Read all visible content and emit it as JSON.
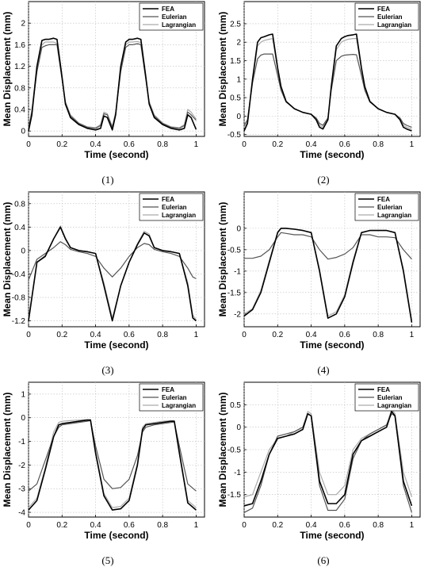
{
  "colors": {
    "FEA": "#000000",
    "Eulerian": "#555555",
    "Lagrangian": "#aaaaaa",
    "grid": "#bdbdbd"
  },
  "chart_data": [
    {
      "type": "line",
      "caption": "(1)",
      "xlabel": "Time (second)",
      "ylabel": "Mean Displacement (mm)",
      "xlim": [
        0,
        1.05
      ],
      "ylim": [
        -0.1,
        2.4
      ],
      "grid": true,
      "legend": "top-right",
      "xticks": [
        "0",
        "0.2",
        "0.4",
        "0.6",
        "0.8",
        "1"
      ],
      "yticks": [
        "0",
        "0.4",
        "0.8",
        "1.2",
        "1.6",
        "2"
      ],
      "x": [
        0,
        0.02,
        0.05,
        0.08,
        0.1,
        0.12,
        0.15,
        0.17,
        0.2,
        0.22,
        0.25,
        0.3,
        0.35,
        0.4,
        0.43,
        0.45,
        0.47,
        0.5,
        0.52,
        0.55,
        0.58,
        0.6,
        0.62,
        0.65,
        0.67,
        0.7,
        0.72,
        0.75,
        0.8,
        0.85,
        0.9,
        0.93,
        0.95,
        0.97,
        1
      ],
      "series": [
        {
          "name": "FEA",
          "values": [
            0,
            0.3,
            1.2,
            1.68,
            1.7,
            1.7,
            1.72,
            1.7,
            1,
            0.5,
            0.25,
            0.12,
            0.05,
            0.02,
            0.05,
            0.28,
            0.25,
            0.02,
            0.3,
            1.2,
            1.65,
            1.7,
            1.7,
            1.72,
            1.7,
            1,
            0.5,
            0.25,
            0.12,
            0.05,
            0.02,
            0.05,
            0.3,
            0.25,
            0.03
          ]
        },
        {
          "name": "Eulerian",
          "values": [
            0.05,
            0.35,
            1.1,
            1.55,
            1.58,
            1.6,
            1.6,
            1.6,
            0.95,
            0.52,
            0.28,
            0.14,
            0.07,
            0.05,
            0.1,
            0.32,
            0.3,
            0.07,
            0.32,
            1.1,
            1.55,
            1.6,
            1.6,
            1.62,
            1.6,
            0.95,
            0.52,
            0.28,
            0.14,
            0.07,
            0.05,
            0.1,
            0.35,
            0.3,
            0.2
          ]
        },
        {
          "name": "Lagrangian",
          "values": [
            0.05,
            0.4,
            1.2,
            1.6,
            1.65,
            1.65,
            1.65,
            1.62,
            0.98,
            0.55,
            0.3,
            0.15,
            0.08,
            0.06,
            0.12,
            0.35,
            0.32,
            0.08,
            0.35,
            1.15,
            1.6,
            1.65,
            1.65,
            1.66,
            1.64,
            0.98,
            0.55,
            0.3,
            0.15,
            0.08,
            0.06,
            0.12,
            0.4,
            0.35,
            0.22
          ]
        }
      ]
    },
    {
      "type": "line",
      "caption": "(2)",
      "xlabel": "Time (second)",
      "ylabel": "Mean Displacement (mm)",
      "xlim": [
        0,
        1.05
      ],
      "ylim": [
        -0.55,
        3.1
      ],
      "grid": true,
      "legend": "top-right",
      "xticks": [
        "0",
        "0.2",
        "0.4",
        "0.6",
        "0.8",
        "1"
      ],
      "yticks": [
        "-0.5",
        "0",
        "0.5",
        "1",
        "1.5",
        "2",
        "2.5"
      ],
      "x": [
        0,
        0.02,
        0.05,
        0.08,
        0.1,
        0.12,
        0.15,
        0.17,
        0.2,
        0.22,
        0.25,
        0.3,
        0.35,
        0.4,
        0.43,
        0.45,
        0.47,
        0.5,
        0.52,
        0.55,
        0.58,
        0.6,
        0.62,
        0.65,
        0.67,
        0.7,
        0.72,
        0.75,
        0.8,
        0.85,
        0.9,
        0.93,
        0.95,
        0.97,
        1
      ],
      "series": [
        {
          "name": "FEA",
          "values": [
            -0.4,
            -0.2,
            1,
            2,
            2.12,
            2.15,
            2.2,
            2.22,
            1.3,
            0.8,
            0.4,
            0.2,
            0.1,
            0.05,
            -0.1,
            -0.3,
            -0.35,
            -0.1,
            0.8,
            1.9,
            2.1,
            2.15,
            2.18,
            2.2,
            2.22,
            1.3,
            0.8,
            0.4,
            0.2,
            0.1,
            0.05,
            -0.1,
            -0.3,
            -0.35,
            -0.4
          ]
        },
        {
          "name": "Eulerian",
          "values": [
            -0.25,
            -0.1,
            0.9,
            1.55,
            1.65,
            1.68,
            1.68,
            1.68,
            1.1,
            0.7,
            0.38,
            0.2,
            0.1,
            0.05,
            -0.05,
            -0.2,
            -0.25,
            -0.05,
            0.7,
            1.5,
            1.62,
            1.65,
            1.66,
            1.67,
            1.66,
            1.1,
            0.7,
            0.38,
            0.2,
            0.1,
            0.05,
            -0.05,
            -0.2,
            -0.25,
            -0.3
          ]
        },
        {
          "name": "Lagrangian",
          "values": [
            -0.3,
            -0.15,
            0.95,
            1.9,
            2,
            2.05,
            2.08,
            2.1,
            1.25,
            0.78,
            0.4,
            0.2,
            0.1,
            0.05,
            -0.08,
            -0.25,
            -0.3,
            -0.08,
            0.75,
            1.8,
            2,
            2.05,
            2.08,
            2.1,
            2.1,
            1.25,
            0.78,
            0.4,
            0.2,
            0.1,
            0.05,
            -0.08,
            -0.25,
            -0.3,
            -0.35
          ]
        }
      ]
    },
    {
      "type": "line",
      "caption": "(3)",
      "xlabel": "Time (second)",
      "ylabel": "Mean Displacement (mm)",
      "xlim": [
        0,
        1.05
      ],
      "ylim": [
        -1.3,
        1.0
      ],
      "grid": true,
      "legend": "top-right",
      "xticks": [
        "0",
        "0.2",
        "0.4",
        "0.6",
        "0.8",
        "1"
      ],
      "yticks": [
        "-1.2",
        "-0.8",
        "-0.4",
        "0",
        "0.4",
        "0.8"
      ],
      "x": [
        0,
        0.05,
        0.1,
        0.15,
        0.19,
        0.22,
        0.25,
        0.3,
        0.35,
        0.4,
        0.45,
        0.5,
        0.55,
        0.6,
        0.65,
        0.69,
        0.72,
        0.75,
        0.8,
        0.85,
        0.9,
        0.95,
        0.98,
        1
      ],
      "series": [
        {
          "name": "FEA",
          "values": [
            -1.2,
            -0.2,
            -0.1,
            0.2,
            0.4,
            0.2,
            0.05,
            0,
            -0.02,
            -0.05,
            -0.6,
            -1.2,
            -0.6,
            -0.2,
            0.1,
            0.3,
            0.25,
            0.05,
            0,
            -0.02,
            -0.05,
            -0.6,
            -1.15,
            -1.2
          ]
        },
        {
          "name": "Eulerian",
          "values": [
            -0.5,
            -0.15,
            -0.05,
            0.05,
            0.15,
            0.1,
            0.02,
            -0.02,
            -0.05,
            -0.1,
            -0.3,
            -0.45,
            -0.3,
            -0.1,
            0.05,
            0.12,
            0.1,
            0.02,
            -0.02,
            -0.05,
            -0.1,
            -0.3,
            -0.45,
            -0.48
          ]
        },
        {
          "name": "Lagrangian",
          "values": [
            -1.15,
            -0.2,
            -0.08,
            0.2,
            0.42,
            0.22,
            0.05,
            0,
            -0.02,
            -0.05,
            -0.55,
            -1.15,
            -0.6,
            -0.2,
            0.12,
            0.33,
            0.28,
            0.05,
            0,
            -0.02,
            -0.05,
            -0.55,
            -1.1,
            -1.18
          ]
        }
      ]
    },
    {
      "type": "line",
      "caption": "(4)",
      "xlabel": "Time (second)",
      "ylabel": "Mean Displacement (mm)",
      "xlim": [
        0,
        1.05
      ],
      "ylim": [
        -2.3,
        0.85
      ],
      "grid": true,
      "legend": "top-right",
      "xticks": [
        "0",
        "0.2",
        "0.4",
        "0.6",
        "0.8",
        "1"
      ],
      "yticks": [
        "-2",
        "-1.5",
        "-1",
        "-0.5",
        "0"
      ],
      "x": [
        0,
        0.05,
        0.1,
        0.15,
        0.2,
        0.22,
        0.25,
        0.3,
        0.35,
        0.4,
        0.45,
        0.5,
        0.55,
        0.6,
        0.65,
        0.7,
        0.75,
        0.8,
        0.85,
        0.9,
        0.95,
        1
      ],
      "series": [
        {
          "name": "FEA",
          "values": [
            -2.05,
            -1.9,
            -1.5,
            -0.8,
            -0.1,
            0,
            0,
            -0.02,
            -0.05,
            -0.1,
            -1,
            -2.1,
            -2,
            -1.6,
            -0.8,
            -0.1,
            -0.05,
            -0.05,
            -0.05,
            -0.1,
            -1,
            -2.2
          ]
        },
        {
          "name": "Eulerian",
          "values": [
            -0.7,
            -0.7,
            -0.65,
            -0.5,
            -0.2,
            -0.1,
            -0.12,
            -0.15,
            -0.15,
            -0.2,
            -0.5,
            -0.72,
            -0.68,
            -0.6,
            -0.45,
            -0.15,
            -0.15,
            -0.2,
            -0.2,
            -0.22,
            -0.5,
            -0.72
          ]
        },
        {
          "name": "Lagrangian",
          "values": [
            -2,
            -1.88,
            -1.45,
            -0.75,
            -0.08,
            0,
            0,
            -0.02,
            -0.05,
            -0.1,
            -0.95,
            -2.05,
            -1.95,
            -1.55,
            -0.75,
            -0.1,
            -0.05,
            -0.05,
            -0.05,
            -0.1,
            -0.95,
            -2.15
          ]
        }
      ]
    },
    {
      "type": "line",
      "caption": "(5)",
      "xlabel": "Time (second)",
      "ylabel": "Mean Displacement (mm)",
      "xlim": [
        0,
        1.05
      ],
      "ylim": [
        -4.2,
        1.5
      ],
      "grid": true,
      "legend": "top-right",
      "xticks": [
        "0",
        "0.2",
        "0.4",
        "0.6",
        "0.8",
        "1"
      ],
      "yticks": [
        "-4",
        "-3",
        "-2",
        "-1",
        "0",
        "1"
      ],
      "x": [
        0,
        0.05,
        0.1,
        0.15,
        0.18,
        0.2,
        0.25,
        0.3,
        0.35,
        0.37,
        0.4,
        0.45,
        0.5,
        0.55,
        0.6,
        0.65,
        0.68,
        0.7,
        0.75,
        0.8,
        0.85,
        0.87,
        0.9,
        0.95,
        1
      ],
      "series": [
        {
          "name": "FEA",
          "values": [
            -3.9,
            -3.5,
            -2.2,
            -0.8,
            -0.3,
            -0.25,
            -0.2,
            -0.15,
            -0.1,
            -0.1,
            -1.5,
            -3.3,
            -3.9,
            -3.85,
            -3.5,
            -2,
            -0.5,
            -0.3,
            -0.25,
            -0.2,
            -0.15,
            -0.15,
            -1.5,
            -3.6,
            -3.9
          ]
        },
        {
          "name": "Eulerian",
          "values": [
            -3.1,
            -2.8,
            -1.8,
            -0.8,
            -0.4,
            -0.3,
            -0.25,
            -0.2,
            -0.15,
            -0.12,
            -1.2,
            -2.6,
            -3,
            -2.95,
            -2.6,
            -1.6,
            -0.6,
            -0.4,
            -0.3,
            -0.25,
            -0.2,
            -0.18,
            -1.2,
            -2.8,
            -3.1
          ]
        },
        {
          "name": "Lagrangian",
          "values": [
            -3.8,
            -3.4,
            -2.1,
            -0.6,
            -0.2,
            -0.15,
            -0.12,
            -0.1,
            -0.08,
            -0.08,
            -1.4,
            -3.2,
            -3.8,
            -3.75,
            -3.4,
            -1.9,
            -0.4,
            -0.25,
            -0.2,
            -0.15,
            -0.12,
            -0.12,
            -1.4,
            -3.5,
            -3.8
          ]
        }
      ]
    },
    {
      "type": "line",
      "caption": "(6)",
      "xlabel": "Time (second)",
      "ylabel": "Mean Displacement (mm)",
      "xlim": [
        0,
        1.05
      ],
      "ylim": [
        -2.0,
        1.0
      ],
      "grid": true,
      "legend": "top-right",
      "xticks": [
        "0",
        "0.2",
        "0.4",
        "0.6",
        "0.8",
        "1"
      ],
      "yticks": [
        "-1.5",
        "-1",
        "-0.5",
        "0",
        "0.5"
      ],
      "x": [
        0,
        0.05,
        0.1,
        0.15,
        0.2,
        0.25,
        0.3,
        0.35,
        0.38,
        0.4,
        0.45,
        0.5,
        0.55,
        0.6,
        0.65,
        0.7,
        0.75,
        0.8,
        0.85,
        0.88,
        0.9,
        0.95,
        1
      ],
      "series": [
        {
          "name": "FEA",
          "values": [
            -1.75,
            -1.7,
            -1.2,
            -0.6,
            -0.25,
            -0.2,
            -0.15,
            -0.05,
            0.3,
            0.25,
            -1.2,
            -1.7,
            -1.7,
            -1.5,
            -0.6,
            -0.3,
            -0.2,
            -0.1,
            0,
            0.35,
            0.25,
            -1.2,
            -1.75
          ]
        },
        {
          "name": "Eulerian",
          "values": [
            -1.9,
            -1.8,
            -1.3,
            -0.6,
            -0.2,
            -0.15,
            -0.1,
            0,
            0.3,
            0.25,
            -1.3,
            -1.85,
            -1.85,
            -1.6,
            -0.7,
            -0.3,
            -0.15,
            -0.05,
            0.05,
            0.3,
            0.25,
            -1.3,
            -1.9
          ]
        },
        {
          "name": "Lagrangian",
          "values": [
            -1.55,
            -1.5,
            -1,
            -0.5,
            -0.25,
            -0.2,
            -0.1,
            0,
            0.35,
            0.3,
            -1,
            -1.5,
            -1.5,
            -1.3,
            -0.5,
            -0.25,
            -0.15,
            -0.05,
            0.05,
            0.4,
            0.3,
            -1,
            -1.55
          ]
        }
      ]
    }
  ]
}
